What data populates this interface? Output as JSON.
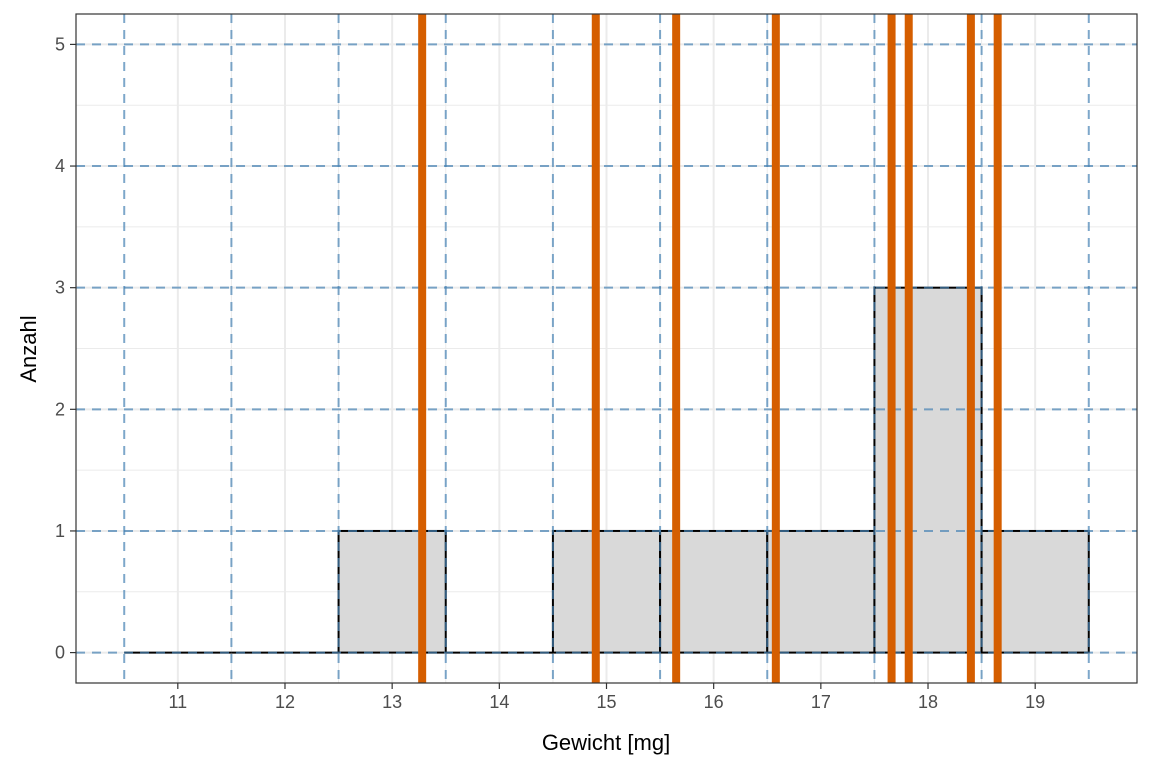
{
  "chart_data": {
    "type": "bar",
    "subtype": "histogram",
    "xlabel": "Gewicht [mg]",
    "ylabel": "Anzahl",
    "xlim": [
      10.05,
      19.95
    ],
    "ylim": [
      -0.25,
      5.25
    ],
    "x_ticks": [
      11,
      12,
      13,
      14,
      15,
      16,
      17,
      18,
      19
    ],
    "y_ticks": [
      0,
      1,
      2,
      3,
      4,
      5
    ],
    "bin_width": 1,
    "bins": [
      {
        "start": 10.5,
        "end": 11.5,
        "count": 0
      },
      {
        "start": 11.5,
        "end": 12.5,
        "count": 0
      },
      {
        "start": 12.5,
        "end": 13.5,
        "count": 1
      },
      {
        "start": 13.5,
        "end": 14.5,
        "count": 0
      },
      {
        "start": 14.5,
        "end": 15.5,
        "count": 1
      },
      {
        "start": 15.5,
        "end": 16.5,
        "count": 1
      },
      {
        "start": 16.5,
        "end": 17.5,
        "count": 1
      },
      {
        "start": 17.5,
        "end": 18.5,
        "count": 3
      },
      {
        "start": 18.5,
        "end": 19.5,
        "count": 1
      }
    ],
    "observations": [
      13.28,
      14.9,
      15.65,
      16.58,
      17.66,
      17.82,
      18.4,
      18.65
    ],
    "grid": true,
    "bin_edge_guides": [
      10.5,
      11.5,
      12.5,
      13.5,
      14.5,
      15.5,
      16.5,
      17.5,
      18.5,
      19.5
    ],
    "legend": "none",
    "colors": {
      "bar_fill": "#d9d9d9",
      "bar_stroke": "#000000",
      "observation_line": "#d55e00",
      "guide_line": "#4682b4",
      "grid": "#ebebeb"
    }
  }
}
